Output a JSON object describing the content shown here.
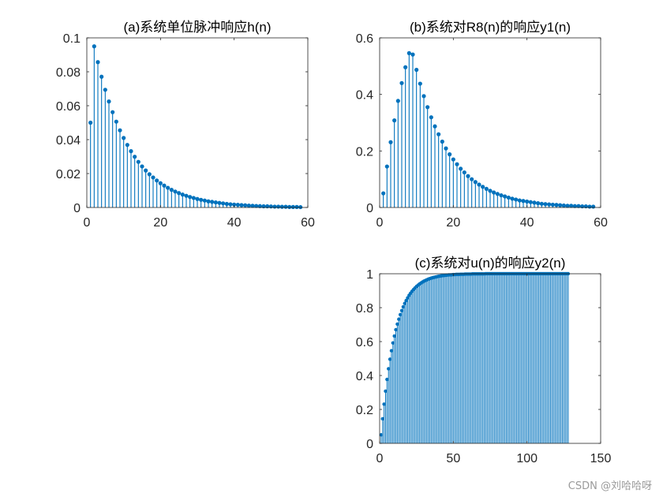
{
  "figure": {
    "watermark": "CSDN @刘哈哈呀"
  },
  "colors": {
    "stem": "#0072BD",
    "axis": "#262626",
    "background": "#ffffff"
  },
  "chart_data": [
    {
      "id": "a",
      "type": "stem",
      "title": "(a)系统单位脉冲响应h(n)",
      "xlabel": "",
      "ylabel": "",
      "xlim": [
        0,
        60
      ],
      "ylim": [
        0,
        0.1
      ],
      "xticks": [
        0,
        20,
        40,
        60
      ],
      "yticks": [
        0,
        0.02,
        0.04,
        0.06,
        0.08,
        0.1
      ],
      "yticklabels": [
        "0",
        "0.02",
        "0.04",
        "0.06",
        "0.08",
        "0.1"
      ],
      "grid": false,
      "x": [
        1,
        2,
        3,
        4,
        5,
        6,
        7,
        8,
        9,
        10,
        11,
        12,
        13,
        14,
        15,
        16,
        17,
        18,
        19,
        20,
        21,
        22,
        23,
        24,
        25,
        26,
        27,
        28,
        29,
        30,
        31,
        32,
        33,
        34,
        35,
        36,
        37,
        38,
        39,
        40,
        41,
        42,
        43,
        44,
        45,
        46,
        47,
        48,
        49,
        50,
        51,
        52,
        53,
        54,
        55,
        56,
        57,
        58
      ],
      "y": [
        0.05,
        0.095,
        0.0857,
        0.0771,
        0.0694,
        0.0625,
        0.0562,
        0.0506,
        0.0455,
        0.041,
        0.0369,
        0.0332,
        0.0299,
        0.0269,
        0.0242,
        0.0218,
        0.0196,
        0.0177,
        0.0159,
        0.0143,
        0.0129,
        0.0116,
        0.0104,
        0.0094,
        0.0085,
        0.0076,
        0.0069,
        0.0062,
        0.0056,
        0.005,
        0.0045,
        0.0041,
        0.0036,
        0.0033,
        0.003,
        0.0027,
        0.0024,
        0.0021,
        0.0019,
        0.0017,
        0.0016,
        0.0014,
        0.0013,
        0.0011,
        0.001,
        0.0009,
        0.0008,
        0.0007,
        0.0007,
        0.0006,
        0.0005,
        0.0005,
        0.0004,
        0.0004,
        0.0003,
        0.0003,
        0.0003,
        0.0002
      ]
    },
    {
      "id": "b",
      "type": "stem",
      "title": "(b)系统对R8(n)的响应y1(n)",
      "xlabel": "",
      "ylabel": "",
      "xlim": [
        0,
        60
      ],
      "ylim": [
        0,
        0.6
      ],
      "xticks": [
        0,
        20,
        40,
        60
      ],
      "yticks": [
        0,
        0.2,
        0.4,
        0.6
      ],
      "yticklabels": [
        "0",
        "0.2",
        "0.4",
        "0.6"
      ],
      "grid": false,
      "x": [
        1,
        2,
        3,
        4,
        5,
        6,
        7,
        8,
        9,
        10,
        11,
        12,
        13,
        14,
        15,
        16,
        17,
        18,
        19,
        20,
        21,
        22,
        23,
        24,
        25,
        26,
        27,
        28,
        29,
        30,
        31,
        32,
        33,
        34,
        35,
        36,
        37,
        38,
        39,
        40,
        41,
        42,
        43,
        44,
        45,
        46,
        47,
        48,
        49,
        50,
        51,
        52,
        53,
        54,
        55,
        56,
        57,
        58
      ],
      "y": [
        0.05,
        0.145,
        0.231,
        0.308,
        0.377,
        0.44,
        0.496,
        0.546,
        0.541,
        0.487,
        0.438,
        0.394,
        0.355,
        0.319,
        0.287,
        0.259,
        0.233,
        0.209,
        0.188,
        0.17,
        0.153,
        0.137,
        0.124,
        0.111,
        0.1,
        0.09,
        0.081,
        0.073,
        0.066,
        0.059,
        0.053,
        0.048,
        0.043,
        0.039,
        0.035,
        0.031,
        0.028,
        0.025,
        0.023,
        0.021,
        0.019,
        0.017,
        0.015,
        0.013,
        0.012,
        0.011,
        0.01,
        0.009,
        0.008,
        0.007,
        0.006,
        0.006,
        0.005,
        0.005,
        0.004,
        0.004,
        0.003,
        0.003
      ]
    },
    {
      "id": "c",
      "type": "stem",
      "title": "(c)系统对u(n)的响应y2(n)",
      "xlabel": "",
      "ylabel": "",
      "xlim": [
        0,
        150
      ],
      "ylim": [
        0,
        1
      ],
      "xticks": [
        0,
        50,
        100,
        150
      ],
      "yticks": [
        0,
        0.2,
        0.4,
        0.6,
        0.8,
        1
      ],
      "yticklabels": [
        "0",
        "0.2",
        "0.4",
        "0.6",
        "0.8",
        "1"
      ],
      "grid": false,
      "x": [
        1,
        2,
        3,
        4,
        5,
        6,
        7,
        8,
        9,
        10,
        11,
        12,
        13,
        14,
        15,
        16,
        17,
        18,
        19,
        20,
        21,
        22,
        23,
        24,
        25,
        26,
        27,
        28,
        29,
        30,
        31,
        32,
        33,
        34,
        35,
        36,
        37,
        38,
        39,
        40,
        41,
        42,
        43,
        44,
        45,
        46,
        47,
        48,
        49,
        50,
        51,
        52,
        53,
        54,
        55,
        56,
        57,
        58,
        59,
        60,
        61,
        62,
        63,
        64,
        65,
        66,
        67,
        68,
        69,
        70,
        71,
        72,
        73,
        74,
        75,
        76,
        77,
        78,
        79,
        80,
        81,
        82,
        83,
        84,
        85,
        86,
        87,
        88,
        89,
        90,
        91,
        92,
        93,
        94,
        95,
        96,
        97,
        98,
        99,
        100,
        101,
        102,
        103,
        104,
        105,
        106,
        107,
        108,
        109,
        110,
        111,
        112,
        113,
        114,
        115,
        116,
        117,
        118,
        119,
        120,
        121,
        122,
        123,
        124,
        125,
        126,
        127,
        128
      ],
      "y": [
        0.05,
        0.145,
        0.231,
        0.308,
        0.377,
        0.44,
        0.496,
        0.546,
        0.592,
        0.633,
        0.67,
        0.703,
        0.732,
        0.759,
        0.783,
        0.805,
        0.825,
        0.842,
        0.858,
        0.873,
        0.885,
        0.897,
        0.907,
        0.916,
        0.925,
        0.932,
        0.939,
        0.945,
        0.951,
        0.956,
        0.96,
        0.964,
        0.968,
        0.971,
        0.974,
        0.977,
        0.979,
        0.981,
        0.983,
        0.985,
        0.986,
        0.988,
        0.989,
        0.99,
        0.991,
        0.992,
        0.993,
        0.993,
        0.994,
        0.995,
        0.995,
        0.996,
        0.996,
        0.996,
        0.997,
        0.997,
        0.997,
        0.998,
        0.998,
        0.998,
        0.998,
        0.998,
        0.999,
        0.999,
        0.999,
        0.999,
        0.999,
        0.999,
        0.999,
        0.999,
        0.999,
        1.0,
        1.0,
        1.0,
        1.0,
        1.0,
        1.0,
        1.0,
        1.0,
        1.0,
        1.0,
        1.0,
        1.0,
        1.0,
        1.0,
        1.0,
        1.0,
        1.0,
        1.0,
        1.0,
        1.0,
        1.0,
        1.0,
        1.0,
        1.0,
        1.0,
        1.0,
        1.0,
        1.0,
        1.0,
        1.0,
        1.0,
        1.0,
        1.0,
        1.0,
        1.0,
        1.0,
        1.0,
        1.0,
        1.0,
        1.0,
        1.0,
        1.0,
        1.0,
        1.0,
        1.0,
        1.0,
        1.0,
        1.0,
        1.0,
        1.0,
        1.0,
        1.0,
        1.0,
        1.0,
        1.0,
        1.0,
        1.0
      ]
    }
  ]
}
